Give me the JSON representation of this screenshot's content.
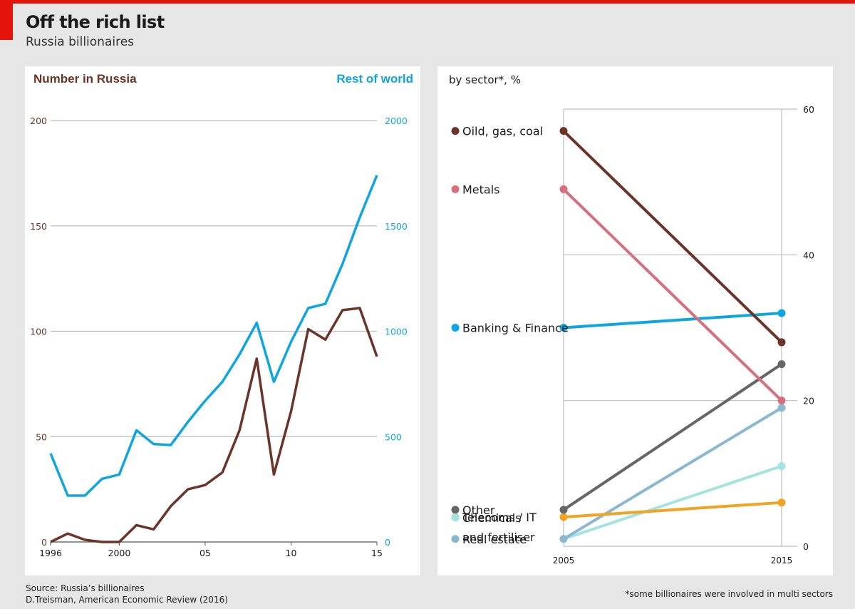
{
  "header": {
    "title": "Off the rich list",
    "subtitle": "Russia billionaires"
  },
  "footer": {
    "source_line1": "Source: Russia’s billionaires",
    "source_line2": "D.Treisman, American Economic Review (2016)",
    "footnote": "*some billionaires were involved in multi sectors"
  },
  "colors": {
    "accent": "#e3120b",
    "russia": "#6b3429",
    "world": "#0ea5e0",
    "grid": "#bdbdbd"
  },
  "chart_data": [
    {
      "type": "line",
      "left_axis_label": "Number in Russia",
      "right_axis_label": "Rest of world",
      "x": [
        1996,
        1997,
        1998,
        1999,
        2000,
        2001,
        2002,
        2003,
        2004,
        2005,
        2006,
        2007,
        2008,
        2009,
        2010,
        2011,
        2012,
        2013,
        2014,
        2015
      ],
      "x_tick_values": [
        1996,
        2000,
        2005,
        2010,
        2015
      ],
      "x_tick_labels": [
        "1996",
        "2000",
        "05",
        "10",
        "15"
      ],
      "xlim": [
        1996,
        2015
      ],
      "y_left_lim": [
        0,
        200
      ],
      "y_left_ticks": [
        "0",
        "50",
        "100",
        "150",
        "200"
      ],
      "y_right_lim": [
        0,
        2000
      ],
      "y_right_ticks": [
        "0",
        "500",
        "1000",
        "1500",
        "2000"
      ],
      "grid": true,
      "series": [
        {
          "name": "Number in Russia",
          "axis": "left",
          "color": "#6b3429",
          "values": [
            0,
            4,
            1,
            0,
            0,
            8,
            6,
            17,
            25,
            27,
            33,
            53,
            87,
            32,
            62,
            101,
            96,
            110,
            111,
            88
          ]
        },
        {
          "name": "Rest of world",
          "axis": "right",
          "color": "#0ea5e0",
          "values": [
            420,
            220,
            220,
            300,
            320,
            530,
            465,
            460,
            570,
            670,
            760,
            890,
            1040,
            760,
            950,
            1110,
            1130,
            1320,
            1540,
            1740
          ]
        }
      ]
    },
    {
      "type": "slope",
      "title": "by sector*, %",
      "x_labels": [
        "2005",
        "2015"
      ],
      "ylim": [
        0,
        60
      ],
      "y_ticks": [
        "0",
        "20",
        "40",
        "60"
      ],
      "grid": true,
      "series": [
        {
          "name": "Oild, gas, coal",
          "color": "#6b3429",
          "values": [
            57,
            28
          ]
        },
        {
          "name": "Metals",
          "color": "#d5707c",
          "values": [
            49,
            20
          ]
        },
        {
          "name": "Banking & Finance",
          "color": "#0ea5e0",
          "values": [
            30,
            32
          ]
        },
        {
          "name": "Other",
          "color": "#666666",
          "values": [
            5,
            25
          ]
        },
        {
          "name": "Telecoms / IT",
          "color": "#f0a424",
          "values": [
            4,
            6
          ]
        },
        {
          "name": "Real estate",
          "color": "#8ab8d1",
          "values": [
            1,
            19
          ]
        },
        {
          "name": "Chemicals and fertiliser",
          "lines": [
            "Chemicals",
            "and fertiliser"
          ],
          "color": "#a3e3e0",
          "values": [
            1,
            11
          ]
        }
      ]
    }
  ]
}
